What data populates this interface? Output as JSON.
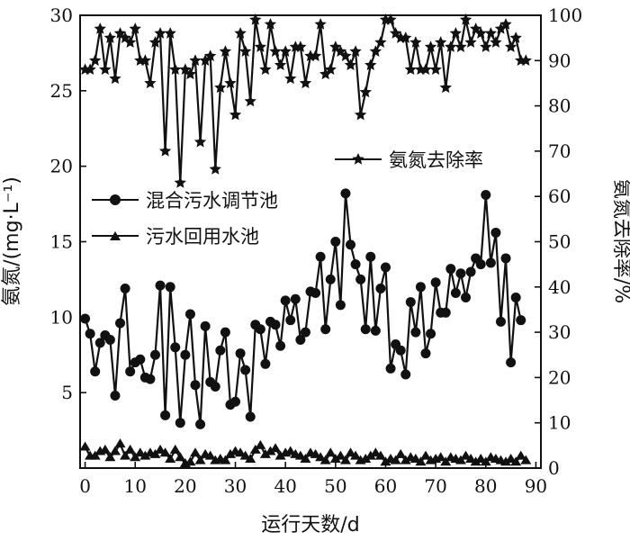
{
  "chart_data": {
    "type": "line",
    "xlabel": "运行天数/d",
    "ylabel_left": "氨氮/(mg·L⁻¹)",
    "ylabel_right": "氨氮去除率/%",
    "x_ticks": [
      0,
      10,
      20,
      30,
      40,
      50,
      60,
      70,
      80,
      90
    ],
    "y_left_ticks": [
      5,
      10,
      15,
      20,
      25,
      30
    ],
    "y_right_ticks": [
      0,
      10,
      20,
      30,
      40,
      50,
      60,
      70,
      80,
      90,
      100
    ],
    "xlim": [
      -1,
      91
    ],
    "ylim_left": [
      0,
      30
    ],
    "ylim_right": [
      0,
      100
    ],
    "grid": false,
    "legend_entries": [
      {
        "label": "氨氮去除率",
        "marker": "star"
      },
      {
        "label": "混合污水调节池",
        "marker": "circle"
      },
      {
        "label": "污水回用水池",
        "marker": "triangle"
      }
    ],
    "series": [
      {
        "name": "混合污水调节池",
        "axis": "left",
        "marker": "circle",
        "x": [
          0,
          1,
          2,
          3,
          4,
          5,
          6,
          7,
          8,
          9,
          10,
          11,
          12,
          13,
          14,
          15,
          16,
          17,
          18,
          19,
          20,
          21,
          22,
          23,
          24,
          25,
          26,
          27,
          28,
          29,
          30,
          31,
          32,
          33,
          34,
          35,
          36,
          37,
          38,
          39,
          40,
          41,
          42,
          43,
          44,
          45,
          46,
          47,
          48,
          49,
          50,
          51,
          52,
          53,
          54,
          55,
          56,
          57,
          58,
          59,
          60,
          61,
          62,
          63,
          64,
          65,
          66,
          67,
          68,
          69,
          70,
          71,
          72,
          73,
          74,
          75,
          76,
          77,
          78,
          79,
          80,
          81,
          82,
          83,
          84,
          85,
          86,
          87,
          88,
          89
        ],
        "y": [
          9.9,
          8.9,
          6.4,
          8.3,
          8.8,
          8.5,
          4.8,
          9.6,
          11.9,
          6.4,
          7.0,
          7.2,
          6.0,
          5.9,
          7.5,
          12.1,
          3.5,
          12.0,
          8.0,
          3.0,
          7.5,
          10.2,
          5.5,
          2.9,
          9.4,
          5.7,
          5.4,
          7.8,
          9.0,
          4.2,
          4.4,
          7.6,
          6.5,
          3.4,
          9.5,
          9.2,
          6.9,
          9.7,
          9.5,
          8.1,
          11.1,
          9.8,
          11.2,
          8.5,
          9.0,
          11.7,
          11.6,
          14.0,
          9.2,
          12.5,
          15.0,
          10.8,
          18.2,
          14.8,
          13.5,
          12.5,
          9.2,
          14.0,
          9.1,
          11.9,
          13.3,
          6.6,
          8.2,
          7.8,
          6.2,
          11.0,
          9.0,
          12.0,
          7.6,
          8.9,
          12.3,
          10.3,
          10.3,
          13.2,
          11.6,
          12.9,
          11.3,
          13.0,
          13.9,
          13.5,
          18.1,
          13.6,
          15.6,
          9.7,
          13.9,
          7.0,
          11.3,
          9.8,
          null,
          null
        ]
      },
      {
        "name": "污水回用水池",
        "axis": "left",
        "marker": "triangle",
        "x": [
          0,
          1,
          2,
          3,
          4,
          5,
          6,
          7,
          8,
          9,
          10,
          11,
          12,
          13,
          14,
          15,
          16,
          17,
          18,
          19,
          20,
          21,
          22,
          23,
          24,
          25,
          26,
          27,
          28,
          29,
          30,
          31,
          32,
          33,
          34,
          35,
          36,
          37,
          38,
          39,
          40,
          41,
          42,
          43,
          44,
          45,
          46,
          47,
          48,
          49,
          50,
          51,
          52,
          53,
          54,
          55,
          56,
          57,
          58,
          59,
          60,
          61,
          62,
          63,
          64,
          65,
          66,
          67,
          68,
          69,
          70,
          71,
          72,
          73,
          74,
          75,
          76,
          77,
          78,
          79,
          80,
          81,
          82,
          83,
          84,
          85,
          86,
          87,
          88
        ],
        "y": [
          1.4,
          0.8,
          0.8,
          1.1,
          1.2,
          0.7,
          1.1,
          1.6,
          0.8,
          1.2,
          0.7,
          1.0,
          0.8,
          1.0,
          0.9,
          1.2,
          1.0,
          0.6,
          1.2,
          0.7,
          0.3,
          0.4,
          1.0,
          0.5,
          0.9,
          0.8,
          0.5,
          0.6,
          0.5,
          0.9,
          1.1,
          1.0,
          0.8,
          0.6,
          1.2,
          1.5,
          0.9,
          1.1,
          1.3,
          0.8,
          1.0,
          1.1,
          0.9,
          0.8,
          0.6,
          1.0,
          0.9,
          0.7,
          0.5,
          1.0,
          0.6,
          0.8,
          0.5,
          1.0,
          0.8,
          0.5,
          0.6,
          0.8,
          1.0,
          0.8,
          0.4,
          0.6,
          0.5,
          0.9,
          0.5,
          0.7,
          0.6,
          0.4,
          0.8,
          0.5,
          0.6,
          0.7,
          0.4,
          0.7,
          0.6,
          0.5,
          0.8,
          0.6,
          0.4,
          0.6,
          0.4,
          0.7,
          0.6,
          0.5,
          0.4,
          0.6,
          0.4,
          0.8,
          0.5
        ]
      },
      {
        "name": "氨氮去除率",
        "axis": "right",
        "marker": "star",
        "x": [
          0,
          1,
          2,
          3,
          4,
          5,
          6,
          7,
          8,
          9,
          10,
          11,
          12,
          13,
          14,
          15,
          16,
          17,
          18,
          19,
          20,
          21,
          22,
          23,
          24,
          25,
          26,
          27,
          28,
          29,
          30,
          31,
          32,
          33,
          34,
          35,
          36,
          37,
          38,
          39,
          40,
          41,
          42,
          43,
          44,
          45,
          46,
          47,
          48,
          49,
          50,
          51,
          52,
          53,
          54,
          55,
          56,
          57,
          58,
          59,
          60,
          61,
          62,
          63,
          64,
          65,
          66,
          67,
          68,
          69,
          70,
          71,
          72,
          73,
          74,
          75,
          76,
          77,
          78,
          79,
          80,
          81,
          82,
          83,
          84,
          85,
          86,
          87,
          88
        ],
        "y": [
          88,
          88,
          90,
          97,
          88,
          95,
          86,
          96,
          95,
          94,
          97,
          90,
          90,
          85,
          94,
          96,
          70,
          96,
          88,
          63,
          88,
          87,
          90,
          72,
          90,
          91,
          66,
          84,
          92,
          85,
          78,
          96,
          92,
          81,
          99,
          93,
          88,
          98,
          92,
          89,
          92,
          86,
          93,
          93,
          85,
          91,
          91,
          98,
          87,
          88,
          93,
          92,
          91,
          89,
          92,
          78,
          83,
          89,
          92,
          94,
          99,
          99,
          96,
          95,
          95,
          88,
          94,
          88,
          88,
          93,
          88,
          94,
          84,
          93,
          96,
          93,
          99,
          94,
          97,
          96,
          93,
          96,
          94,
          97,
          98,
          93,
          95,
          90,
          90
        ]
      }
    ]
  }
}
